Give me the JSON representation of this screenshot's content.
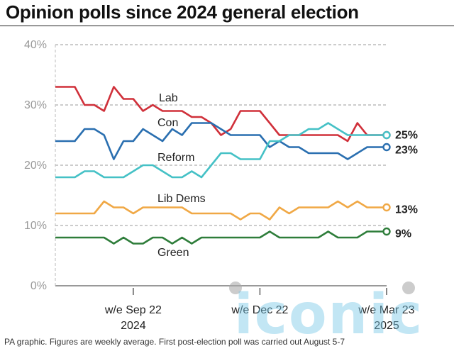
{
  "title": "Opinion polls since 2024 general election",
  "footer": "PA graphic. Figures are weekly average. First post-election poll was carried out August 5-7",
  "watermark": "iconic",
  "chart_data": {
    "type": "line",
    "title": "Opinion polls since 2024 general election",
    "xlabel": "",
    "ylabel": "",
    "ylim": [
      0,
      40
    ],
    "yticks": [
      "0%",
      "10%",
      "20%",
      "30%",
      "40%"
    ],
    "xticks": [
      {
        "index": 8,
        "line1": "w/e Sep 22",
        "line2": "2024"
      },
      {
        "index": 21,
        "line1": "w/e Dec 22",
        "line2": ""
      },
      {
        "index": 34,
        "line1": "w/e Mar 23",
        "line2": "2025"
      }
    ],
    "grid": true,
    "series": [
      {
        "name": "Lab",
        "color": "#d0303a",
        "end_label": "25%",
        "values": [
          33,
          33,
          33,
          30,
          30,
          29,
          33,
          31,
          31,
          29,
          30,
          29,
          29,
          29,
          28,
          28,
          27,
          25,
          26,
          29,
          29,
          29,
          27,
          25,
          25,
          25,
          25,
          25,
          25,
          25,
          24,
          27,
          25,
          25,
          25
        ]
      },
      {
        "name": "Con",
        "color": "#2a6fb0",
        "end_label": "23%",
        "values": [
          24,
          24,
          24,
          26,
          26,
          25,
          21,
          24,
          24,
          26,
          25,
          24,
          26,
          25,
          27,
          27,
          27,
          26,
          25,
          25,
          25,
          25,
          23,
          24,
          23,
          23,
          22,
          22,
          22,
          22,
          21,
          22,
          23,
          23,
          23
        ]
      },
      {
        "name": "Reform",
        "color": "#45c1c6",
        "end_label": "",
        "values": [
          18,
          18,
          18,
          19,
          19,
          18,
          18,
          18,
          19,
          20,
          20,
          19,
          18,
          18,
          19,
          18,
          20,
          22,
          22,
          21,
          21,
          21,
          24,
          24,
          25,
          25,
          26,
          26,
          27,
          26,
          25,
          25,
          25,
          25,
          25
        ]
      },
      {
        "name": "Lib Dems",
        "color": "#f0a845",
        "end_label": "13%",
        "values": [
          12,
          12,
          12,
          12,
          12,
          14,
          13,
          13,
          12,
          13,
          13,
          13,
          13,
          13,
          12,
          12,
          12,
          12,
          12,
          11,
          12,
          12,
          11,
          13,
          12,
          13,
          13,
          13,
          13,
          14,
          13,
          14,
          13,
          13,
          13
        ]
      },
      {
        "name": "Green",
        "color": "#2e7d3a",
        "end_label": "9%",
        "values": [
          8,
          8,
          8,
          8,
          8,
          8,
          7,
          8,
          7,
          7,
          8,
          8,
          7,
          8,
          7,
          8,
          8,
          8,
          8,
          8,
          8,
          8,
          9,
          8,
          8,
          8,
          8,
          8,
          9,
          8,
          8,
          8,
          9,
          9,
          9
        ]
      }
    ]
  }
}
